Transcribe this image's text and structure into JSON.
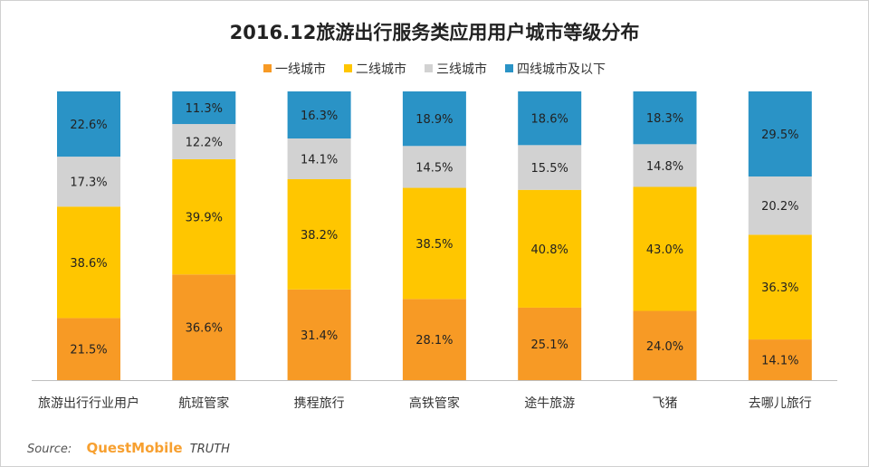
{
  "chart_data": {
    "type": "bar",
    "stacked": true,
    "normalized_percent": true,
    "title": "2016.12旅游出行服务类应用用户城市等级分布",
    "categories": [
      "旅游出行行业用户",
      "航班管家",
      "携程旅行",
      "高铁管家",
      "途牛旅游",
      "飞猪",
      "去哪儿旅行"
    ],
    "series": [
      {
        "name": "一线城市",
        "color": "#f79a25",
        "values": [
          21.5,
          36.6,
          31.4,
          28.1,
          25.1,
          24.0,
          14.1
        ]
      },
      {
        "name": "二线城市",
        "color": "#ffc600",
        "values": [
          38.6,
          39.9,
          38.2,
          38.5,
          40.8,
          43.0,
          36.3
        ]
      },
      {
        "name": "三线城市",
        "color": "#d2d2d2",
        "values": [
          17.3,
          12.2,
          14.1,
          14.5,
          15.5,
          14.8,
          20.2
        ]
      },
      {
        "name": "四线城市及以下",
        "color": "#2a93c6",
        "values": [
          22.6,
          11.3,
          16.3,
          18.9,
          18.6,
          18.3,
          29.5
        ]
      }
    ],
    "ylim": [
      0,
      100
    ],
    "grid": false,
    "legend_position": "top",
    "label_suffix": "%"
  },
  "source": {
    "label": "Source:",
    "brand": "QuestMobile",
    "suffix": "TRUTH"
  }
}
